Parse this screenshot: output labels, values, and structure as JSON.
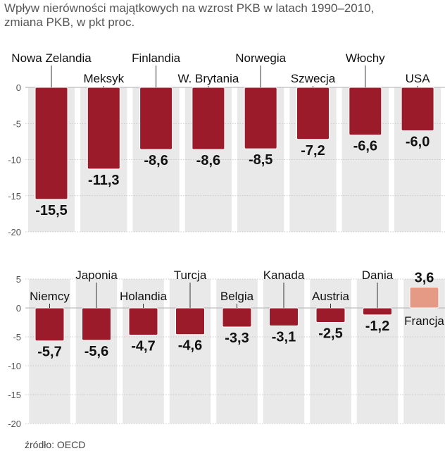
{
  "title": {
    "line1": "Wpływ nierówności majątkowych na wzrost PKB w latach 1990–2010,",
    "line2": "zmiana PKB, w pkt proc."
  },
  "source": "źródło: OECD",
  "colors": {
    "negative": "#9b1b2b",
    "positive": "#e59a85",
    "panel": "#e9e9e9",
    "grid": "#bdbdbd",
    "text": "#111111",
    "axis_text": "#555555"
  },
  "chart_data": [
    {
      "type": "bar",
      "title": "Wpływ nierówności majątkowych na wzrost PKB w latach 1990–2010, zmiana PKB, w pkt proc.",
      "ylabel": "zmiana PKB, w pkt proc.",
      "ylim": [
        -20,
        0
      ],
      "yticks": [
        {
          "value": 0,
          "label": "0"
        },
        {
          "value": -5,
          "label": "-5"
        },
        {
          "value": -10,
          "label": "-10"
        },
        {
          "value": -15,
          "label": "-15"
        },
        {
          "value": -20,
          "label": "-20"
        }
      ],
      "categories": [
        "Nowa Zelandia",
        "Meksyk",
        "Finlandia",
        "W. Brytania",
        "Norwegia",
        "Szwecja",
        "Włochy",
        "USA"
      ],
      "values": [
        -15.5,
        -11.3,
        -8.6,
        -8.6,
        -8.5,
        -7.2,
        -6.6,
        -6.0
      ],
      "value_labels": [
        "-15,5",
        "-11,3",
        "-8,6",
        "-8,6",
        "-8,5",
        "-7,2",
        "-6,6",
        "-6,0"
      ]
    },
    {
      "type": "bar",
      "ylim": [
        -20,
        5
      ],
      "yticks": [
        {
          "value": 5,
          "label": "5"
        },
        {
          "value": 0,
          "label": "0"
        },
        {
          "value": -5,
          "label": "-5"
        },
        {
          "value": -10,
          "label": "-10"
        },
        {
          "value": -15,
          "label": "-15"
        },
        {
          "value": -20,
          "label": "-20"
        }
      ],
      "categories": [
        "Niemcy",
        "Japonia",
        "Holandia",
        "Turcja",
        "Belgia",
        "Kanada",
        "Austria",
        "Dania",
        "Francja"
      ],
      "values": [
        -5.7,
        -5.6,
        -4.7,
        -4.6,
        -3.3,
        -3.1,
        -2.5,
        -1.2,
        3.6
      ],
      "value_labels": [
        "-5,7",
        "-5,6",
        "-4,7",
        "-4,6",
        "-3,3",
        "-3,1",
        "-2,5",
        "-1,2",
        "3,6"
      ]
    }
  ]
}
